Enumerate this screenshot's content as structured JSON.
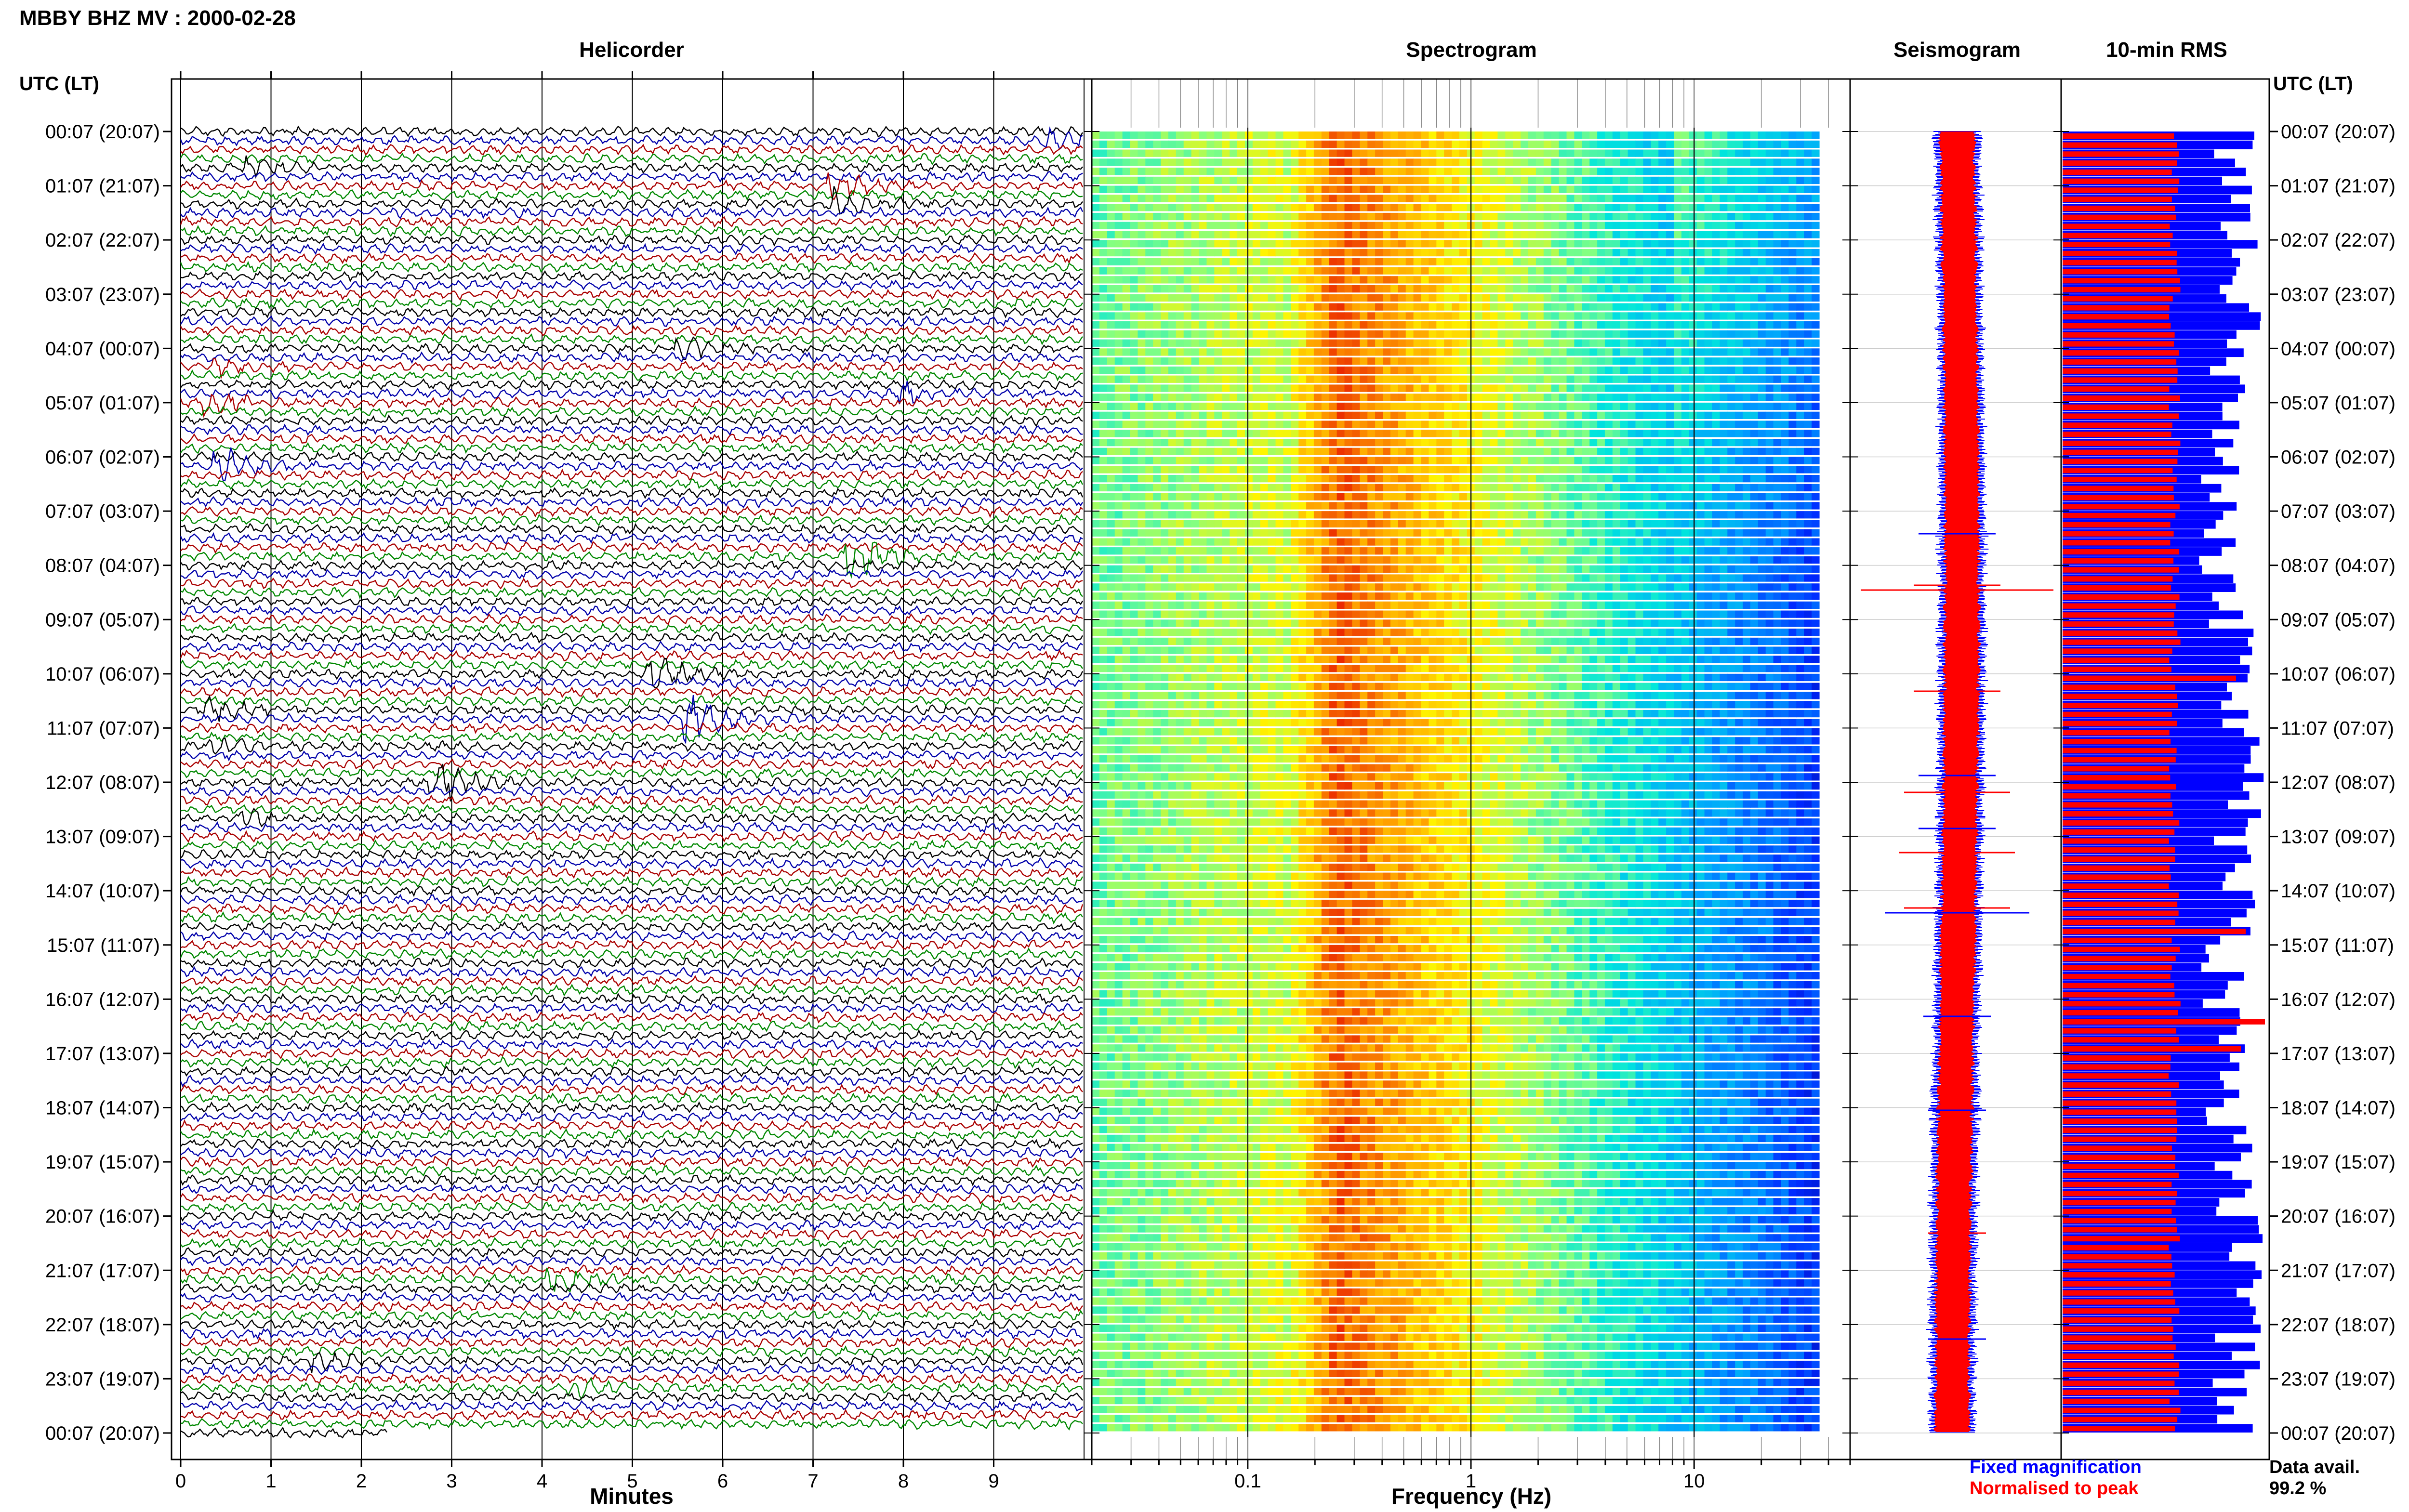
{
  "header": {
    "title": "MBBY BHZ MV : 2000-02-28",
    "utc_label_left": "UTC (LT)",
    "utc_label_right": "UTC (LT)"
  },
  "panels": {
    "helicorder": "Helicorder",
    "spectrogram": "Spectrogram",
    "seismogram": "Seismogram",
    "rms": "10-min RMS"
  },
  "time_labels": [
    "00:07 (20:07)",
    "01:07 (21:07)",
    "02:07 (22:07)",
    "03:07 (23:07)",
    "04:07 (00:07)",
    "05:07 (01:07)",
    "06:07 (02:07)",
    "07:07 (03:07)",
    "08:07 (04:07)",
    "09:07 (05:07)",
    "10:07 (06:07)",
    "11:07 (07:07)",
    "12:07 (08:07)",
    "13:07 (09:07)",
    "14:07 (10:07)",
    "15:07 (11:07)",
    "16:07 (12:07)",
    "17:07 (13:07)",
    "18:07 (14:07)",
    "19:07 (15:07)",
    "20:07 (16:07)",
    "21:07 (17:07)",
    "22:07 (18:07)",
    "23:07 (19:07)",
    "00:07 (20:07)"
  ],
  "legend": {
    "fixed": "Fixed magnification",
    "normalised": "Normalised to peak",
    "fixed_color": "#0000ff",
    "normalised_color": "#ff0000"
  },
  "availability": {
    "label": "Data avail.",
    "value": "99.2 %"
  },
  "trace_colors": [
    "#000000",
    "#0000aa",
    "#aa0000",
    "#008800"
  ],
  "chart_data": [
    {
      "type": "line",
      "title": "Helicorder",
      "xlabel": "Minutes",
      "ylabel": "UTC (LT)",
      "x_ticks": [
        "0",
        "1",
        "2",
        "3",
        "4",
        "5",
        "6",
        "7",
        "8",
        "9"
      ],
      "xlim": [
        0,
        10
      ],
      "rows_per_hour": 6,
      "hours": 24,
      "events": [
        {
          "row": 1,
          "minute": 9.7,
          "amp": 1.4,
          "color": "#008800"
        },
        {
          "row": 4,
          "minute": 0.8,
          "amp": 1.3,
          "color": "#008800"
        },
        {
          "row": 6,
          "minute": 7.3,
          "amp": 1.7,
          "color": "#0000aa"
        },
        {
          "row": 8,
          "minute": 7.3,
          "amp": 2.0,
          "color": "#0000aa"
        },
        {
          "row": 24,
          "minute": 5.6,
          "amp": 1.4,
          "color": "#aa0000"
        },
        {
          "row": 26,
          "minute": 0.5,
          "amp": 1.2,
          "color": "#0000aa"
        },
        {
          "row": 29,
          "minute": 8.1,
          "amp": 1.3,
          "color": "#000000"
        },
        {
          "row": 30,
          "minute": 0.4,
          "amp": 1.5,
          "color": "#008800"
        },
        {
          "row": 37,
          "minute": 0.5,
          "amp": 2.6,
          "color": "#000000"
        },
        {
          "row": 47,
          "minute": 7.5,
          "amp": 3.2,
          "color": "#0000aa"
        },
        {
          "row": 60,
          "minute": 5.3,
          "amp": 2.4,
          "color": "#0000aa"
        },
        {
          "row": 64,
          "minute": 0.4,
          "amp": 1.6,
          "color": "#0000aa"
        },
        {
          "row": 65,
          "minute": 5.7,
          "amp": 3.2,
          "color": "#aa0000"
        },
        {
          "row": 68,
          "minute": 0.4,
          "amp": 1.4,
          "color": "#aa0000"
        },
        {
          "row": 72,
          "minute": 2.9,
          "amp": 3.0,
          "color": "#000000"
        },
        {
          "row": 76,
          "minute": 0.8,
          "amp": 1.1,
          "color": "#aa0000"
        },
        {
          "row": 127,
          "minute": 4.2,
          "amp": 1.6,
          "color": "#000000"
        },
        {
          "row": 136,
          "minute": 1.6,
          "amp": 1.2,
          "color": "#008800"
        },
        {
          "row": 139,
          "minute": 4.4,
          "amp": 1.2,
          "color": "#0000aa"
        }
      ]
    },
    {
      "type": "heatmap",
      "title": "Spectrogram",
      "xlabel": "Frequency (Hz)",
      "x_scale": "log",
      "x_ticks": [
        "0.1",
        "1",
        "10"
      ],
      "xlim": [
        0.02,
        50
      ],
      "rows": 144
    },
    {
      "type": "line",
      "title": "Seismogram",
      "series": [
        {
          "name": "Fixed magnification",
          "color": "#0000ff"
        },
        {
          "name": "Normalised to peak",
          "color": "#ff0000"
        }
      ]
    },
    {
      "type": "bar",
      "title": "10-min RMS",
      "orientation": "horizontal",
      "bars": 144,
      "series": [
        {
          "name": "Fixed magnification",
          "color": "#0000ff"
        },
        {
          "name": "Normalised to peak",
          "color": "#ff0000"
        }
      ]
    }
  ]
}
